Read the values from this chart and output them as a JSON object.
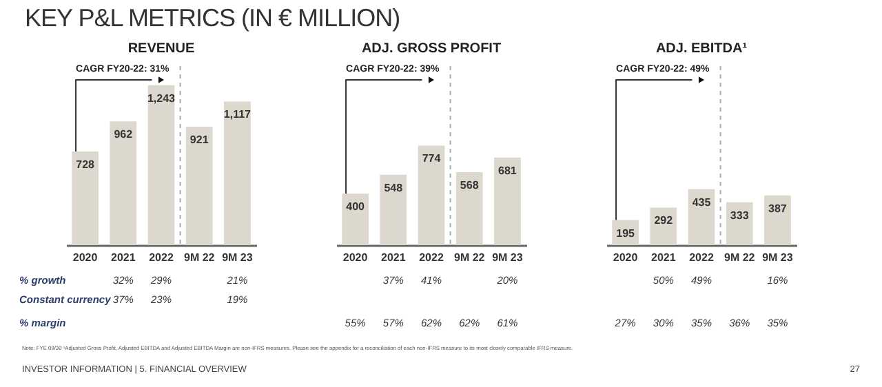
{
  "chart_data": [
    {
      "type": "bar",
      "title": "REVENUE",
      "categories": [
        "2020",
        "2021",
        "2022",
        "9M 22",
        "9M 23"
      ],
      "values": [
        728,
        962,
        1243,
        921,
        1117
      ],
      "color": "#dcd8ce",
      "value_labels": [
        "728",
        "962",
        "1,243",
        "921",
        "1,117"
      ],
      "annotations": [
        "CAGR FY20-22: 31%",
        "KEY P&L METRICS (IN € MILLION)",
        "Note: FYE 09/30 ¹Adjusted Gross Profit, Adjusted EBITDA and Adjusted EBITDA Margin are non-IFRS measures. Please see the appendix for a reconciliation of each non-IFRS measure to its most closely comparable IFRS measure.",
        "INVESTOR INFORMATION | 5. FINANCIAL OVERVIEW",
        "27",
        "% growth",
        "Constant currency",
        "% margin",
        "32%",
        "29%",
        "21%",
        "37%",
        "23%",
        "19%"
      ]
    },
    {
      "type": "bar",
      "title": "ADJ. GROSS PROFIT",
      "categories": [
        "2020",
        "2021",
        "2022",
        "9M 22",
        "9M 23"
      ],
      "values": [
        400,
        548,
        774,
        568,
        681
      ],
      "color": "#dcd8ce",
      "value_labels": [
        "400",
        "548",
        "774",
        "568",
        "681"
      ],
      "annotations": [
        "CAGR FY20-22: 39%",
        "37%",
        "41%",
        "20%",
        "55%",
        "57%",
        "62%",
        "62%",
        "61%"
      ]
    },
    {
      "type": "bar",
      "title": "ADJ. EBITDA¹",
      "categories": [
        "2020",
        "2021",
        "2022",
        "9M 22",
        "9M 23"
      ],
      "values": [
        195,
        292,
        435,
        333,
        387
      ],
      "color": "#dcd8ce",
      "value_labels": [
        "195",
        "292",
        "435",
        "333",
        "387"
      ],
      "annotations": [
        "CAGR FY20-22: 49%",
        "50%",
        "49%",
        "16%",
        "27%",
        "30%",
        "35%",
        "36%",
        "35%"
      ]
    }
  ]
}
